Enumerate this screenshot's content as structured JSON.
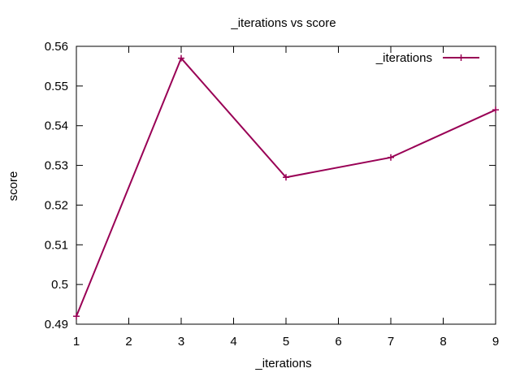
{
  "chart_data": {
    "type": "line",
    "title": "_iterations vs score",
    "xlabel": "_iterations",
    "ylabel": "score",
    "xlim": [
      1,
      9
    ],
    "ylim": [
      0.49,
      0.56
    ],
    "x_ticks": [
      "1",
      "2",
      "3",
      "4",
      "5",
      "6",
      "7",
      "8",
      "9"
    ],
    "y_ticks": [
      "0.49",
      "0.5",
      "0.51",
      "0.52",
      "0.53",
      "0.54",
      "0.55",
      "0.56"
    ],
    "grid": false,
    "legend_position": "top-right",
    "series": [
      {
        "name": "_iterations",
        "color": "#990055",
        "marker": "plus",
        "x": [
          1,
          3,
          5,
          7,
          9
        ],
        "y": [
          0.492,
          0.557,
          0.527,
          0.532,
          0.544
        ]
      }
    ]
  }
}
